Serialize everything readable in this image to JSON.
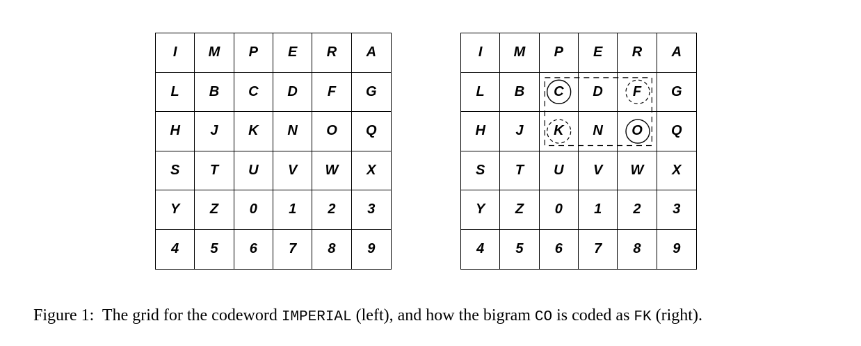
{
  "figure": {
    "grid_rows": [
      [
        "I",
        "M",
        "P",
        "E",
        "R",
        "A"
      ],
      [
        "L",
        "B",
        "C",
        "D",
        "F",
        "G"
      ],
      [
        "H",
        "J",
        "K",
        "N",
        "O",
        "Q"
      ],
      [
        "S",
        "T",
        "U",
        "V",
        "W",
        "X"
      ],
      [
        "Y",
        "Z",
        "0",
        "1",
        "2",
        "3"
      ],
      [
        "4",
        "5",
        "6",
        "7",
        "8",
        "9"
      ]
    ],
    "plaintext_highlight": [
      [
        1,
        2
      ],
      [
        2,
        4
      ]
    ],
    "ciphertext_highlight": [
      [
        1,
        4
      ],
      [
        2,
        2
      ]
    ],
    "rectangle_corners": {
      "row_start": 1,
      "row_end": 2,
      "col_start": 2,
      "col_end": 4
    }
  },
  "caption": {
    "prefix": "Figure 1:",
    "text1": "The grid for the codeword",
    "codeword": "IMPERIAL",
    "text2": "(left), and how the bigram",
    "bigram": "CO",
    "text3": "is coded as",
    "coded": "FK",
    "text4": "(right)."
  }
}
